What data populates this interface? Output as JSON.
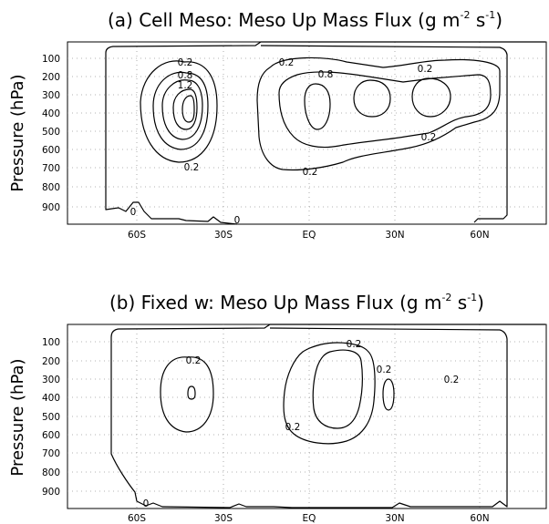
{
  "chart_data": [
    {
      "type": "contour",
      "title": "(a) Cell Meso: Meso Up Mass Flux (g m",
      "title_exp1": "-2",
      "title_mid": " s",
      "title_exp2": "-1",
      "title_end": ")",
      "ylabel": "Pressure (hPa)",
      "xlabel": "",
      "x_ticks": [
        "60S",
        "30S",
        "EQ",
        "30N",
        "60N"
      ],
      "y_ticks": [
        "100",
        "200",
        "300",
        "400",
        "500",
        "600",
        "700",
        "800",
        "900"
      ],
      "grid": true,
      "contour_labels": [
        "0.2",
        "0.8",
        "1.2",
        "0.2",
        "0",
        "0",
        "0.2",
        "0.8",
        "0.2",
        "0.2",
        "0.2"
      ]
    },
    {
      "type": "contour",
      "title": "(b) Fixed w: Meso Up Mass Flux (g m",
      "title_exp1": "-2",
      "title_mid": " s",
      "title_exp2": "-1",
      "title_end": ")",
      "ylabel": "Pressure (hPa)",
      "xlabel": "",
      "x_ticks": [
        "60S",
        "30S",
        "EQ",
        "30N",
        "60N"
      ],
      "y_ticks": [
        "100",
        "200",
        "300",
        "400",
        "500",
        "600",
        "700",
        "800",
        "900"
      ],
      "grid": true,
      "contour_labels": [
        "0.2",
        "0.2",
        "0.2",
        "0.2",
        "0.2",
        "0"
      ]
    }
  ]
}
